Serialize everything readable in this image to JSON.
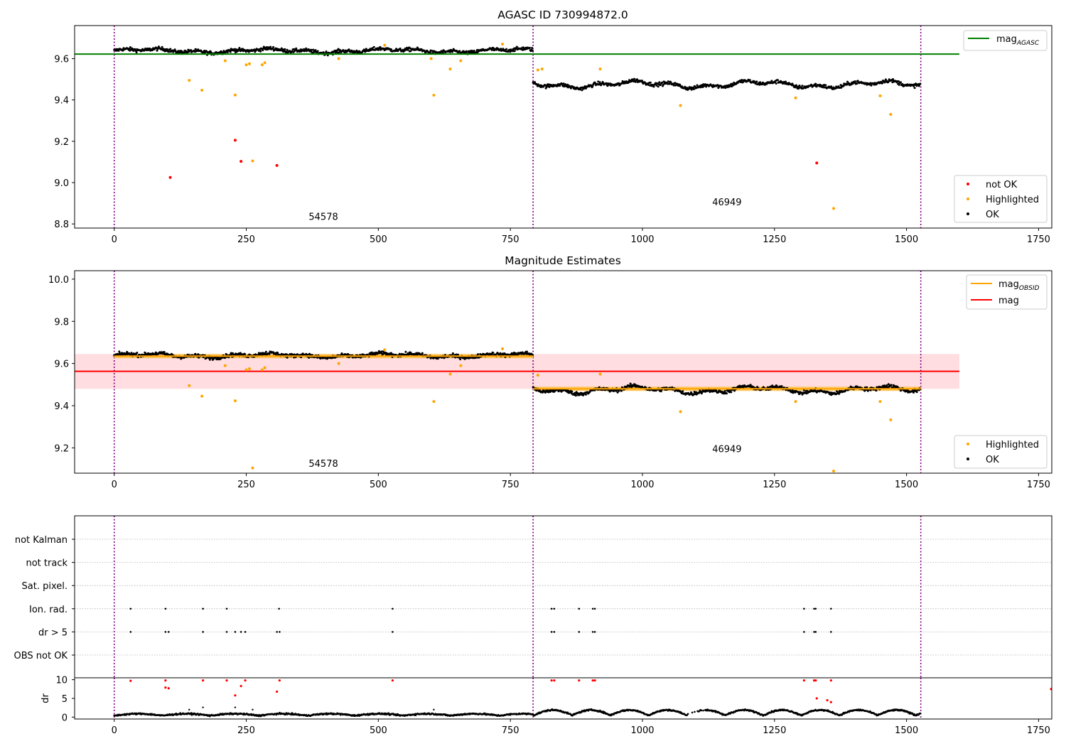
{
  "chart_data": [
    {
      "type": "scatter",
      "title": "AGASC ID 730994872.0",
      "xlim": [
        -75,
        1775
      ],
      "ylim": [
        8.78,
        9.76
      ],
      "xticks": [
        0,
        250,
        500,
        750,
        1000,
        1250,
        1500,
        1750
      ],
      "yticks": [
        8.8,
        9.0,
        9.2,
        9.4,
        9.6
      ],
      "ytick_labels": [
        "8.8",
        "9.0",
        "9.2",
        "9.4",
        "9.6"
      ],
      "vlines": [
        0,
        793,
        1527
      ],
      "obsid_labels": [
        {
          "text": "54578",
          "x": 396,
          "y": 8.82
        },
        {
          "text": "46949",
          "x": 1160,
          "y": 8.89
        }
      ],
      "hline": {
        "name": "mag",
        "sub": "AGASC",
        "y": 9.622,
        "x0": -75,
        "x1": 1600,
        "color": "#008000"
      },
      "segments": [
        {
          "x0": 0,
          "x1": 793,
          "mean": 9.638,
          "amp": 0.012
        },
        {
          "x0": 793,
          "x1": 1527,
          "mean": 9.475,
          "amp": 0.02
        }
      ],
      "ok_series": {
        "name": "OK",
        "color": "#000000",
        "points_per_segment": [
          790,
          720
        ]
      },
      "highlighted": {
        "name": "Highlighted",
        "color": "#ffa500",
        "points": [
          [
            142,
            9.495
          ],
          [
            166,
            9.447
          ],
          [
            210,
            9.59
          ],
          [
            229,
            9.424
          ],
          [
            250,
            9.57
          ],
          [
            256,
            9.575
          ],
          [
            280,
            9.57
          ],
          [
            285,
            9.58
          ],
          [
            425,
            9.6
          ],
          [
            512,
            9.665
          ],
          [
            600,
            9.6
          ],
          [
            605,
            9.423
          ],
          [
            636,
            9.55
          ],
          [
            656,
            9.59
          ],
          [
            735,
            9.67
          ],
          [
            802,
            9.545
          ],
          [
            810,
            9.55
          ],
          [
            920,
            9.55
          ],
          [
            1072,
            9.373
          ],
          [
            1290,
            9.41
          ],
          [
            1362,
            8.875
          ],
          [
            1450,
            9.42
          ],
          [
            1470,
            9.33
          ],
          [
            262,
            9.105
          ]
        ]
      },
      "not_ok": {
        "name": "not OK",
        "color": "#ff0000",
        "points": [
          [
            106,
            9.025
          ],
          [
            229,
            9.205
          ],
          [
            240,
            9.103
          ],
          [
            308,
            9.083
          ],
          [
            1330,
            9.095
          ]
        ]
      },
      "legend_lines": [
        {
          "label": "mag",
          "sub": "AGASC",
          "color": "#008000"
        }
      ],
      "legend_points": [
        {
          "label": "not OK",
          "color": "#ff0000"
        },
        {
          "label": "Highlighted",
          "color": "#ffa500"
        },
        {
          "label": "OK",
          "color": "#000000"
        }
      ]
    },
    {
      "type": "scatter",
      "title": "Magnitude Estimates",
      "xlim": [
        -75,
        1775
      ],
      "ylim": [
        9.08,
        10.04
      ],
      "xticks": [
        0,
        250,
        500,
        750,
        1000,
        1250,
        1500,
        1750
      ],
      "yticks": [
        9.2,
        9.4,
        9.6,
        9.8,
        10.0
      ],
      "ytick_labels": [
        "9.2",
        "9.4",
        "9.6",
        "9.8",
        "10.0"
      ],
      "vlines": [
        0,
        793,
        1527
      ],
      "obsid_labels": [
        {
          "text": "54578",
          "x": 396,
          "y": 9.11
        },
        {
          "text": "46949",
          "x": 1160,
          "y": 9.18
        }
      ],
      "band": {
        "y0": 9.48,
        "y1": 9.645,
        "x0": -75,
        "x1": 1600,
        "color": "#ffdde0"
      },
      "mag_line": {
        "name": "mag",
        "y": 9.563,
        "x0": -75,
        "x1": 1600,
        "color": "#ff0000"
      },
      "obsid_lines": [
        {
          "x0": 0,
          "x1": 793,
          "y": 9.635
        },
        {
          "x0": 793,
          "x1": 1527,
          "y": 9.48
        }
      ],
      "segments": [
        {
          "x0": 0,
          "x1": 793,
          "mean": 9.638,
          "amp": 0.012
        },
        {
          "x0": 793,
          "x1": 1527,
          "mean": 9.475,
          "amp": 0.02
        }
      ],
      "ok_series": {
        "name": "OK",
        "color": "#000000"
      },
      "highlighted": {
        "name": "Highlighted",
        "color": "#ffa500",
        "points": [
          [
            142,
            9.495
          ],
          [
            166,
            9.445
          ],
          [
            210,
            9.59
          ],
          [
            229,
            9.423
          ],
          [
            250,
            9.57
          ],
          [
            256,
            9.575
          ],
          [
            280,
            9.57
          ],
          [
            285,
            9.58
          ],
          [
            425,
            9.6
          ],
          [
            512,
            9.665
          ],
          [
            605,
            9.42
          ],
          [
            636,
            9.55
          ],
          [
            656,
            9.59
          ],
          [
            735,
            9.67
          ],
          [
            802,
            9.545
          ],
          [
            920,
            9.55
          ],
          [
            1072,
            9.372
          ],
          [
            1290,
            9.42
          ],
          [
            1362,
            9.09
          ],
          [
            1450,
            9.42
          ],
          [
            1470,
            9.333
          ],
          [
            262,
            9.105
          ]
        ]
      },
      "legend_lines": [
        {
          "label": "mag",
          "sub": "OBSID",
          "color": "#ffa500"
        },
        {
          "label": "mag",
          "sub": "",
          "color": "#ff0000"
        }
      ],
      "legend_points": [
        {
          "label": "Highlighted",
          "color": "#ffa500"
        },
        {
          "label": "OK",
          "color": "#000000"
        }
      ]
    },
    {
      "type": "scatter",
      "title": "",
      "xlim": [
        -75,
        1775
      ],
      "xticks": [
        0,
        250,
        500,
        750,
        1000,
        1250,
        1500,
        1750
      ],
      "vlines": [
        0,
        793,
        1527
      ],
      "flag_labels": [
        "not Kalman",
        "not track",
        "Sat. pixel.",
        "Ion. rad.",
        "dr > 5",
        "OBS not OK"
      ],
      "flags": {
        "Ion. rad.": [
          31,
          97,
          168,
          213,
          312,
          527,
          828,
          833,
          880,
          906,
          910,
          1306,
          1325,
          1328,
          1357
        ],
        "dr > 5": [
          31,
          97,
          103,
          168,
          213,
          229,
          240,
          248,
          308,
          313,
          527,
          828,
          833,
          880,
          906,
          910,
          1306,
          1325,
          1328,
          1357
        ]
      },
      "dr_panel": {
        "ylabel": "dr",
        "ylim": [
          -0.5,
          10.5
        ],
        "yticks": [
          0,
          5,
          10
        ],
        "ytick_labels": [
          "0",
          "5",
          "10"
        ],
        "red_points": [
          [
            31,
            9.7
          ],
          [
            97,
            9.8
          ],
          [
            97,
            7.9
          ],
          [
            103,
            7.7
          ],
          [
            168,
            9.8
          ],
          [
            213,
            9.8
          ],
          [
            229,
            5.8
          ],
          [
            240,
            8.3
          ],
          [
            248,
            9.8
          ],
          [
            308,
            6.8
          ],
          [
            313,
            9.8
          ],
          [
            527,
            9.8
          ],
          [
            828,
            9.8
          ],
          [
            833,
            9.8
          ],
          [
            880,
            9.8
          ],
          [
            906,
            9.8
          ],
          [
            910,
            9.8
          ],
          [
            1306,
            9.8
          ],
          [
            1325,
            9.8
          ],
          [
            1328,
            9.8
          ],
          [
            1330,
            5.0
          ],
          [
            1350,
            4.5
          ],
          [
            1357,
            9.8
          ],
          [
            1357,
            4.0
          ],
          [
            1775,
            7.5
          ]
        ],
        "black_outliers": [
          [
            142,
            2.0
          ],
          [
            168,
            2.6
          ],
          [
            229,
            2.6
          ],
          [
            262,
            2.0
          ],
          [
            605,
            2.0
          ]
        ],
        "dropout": {
          "x0": 1080,
          "x1": 1120,
          "level": 1.9
        }
      }
    }
  ]
}
